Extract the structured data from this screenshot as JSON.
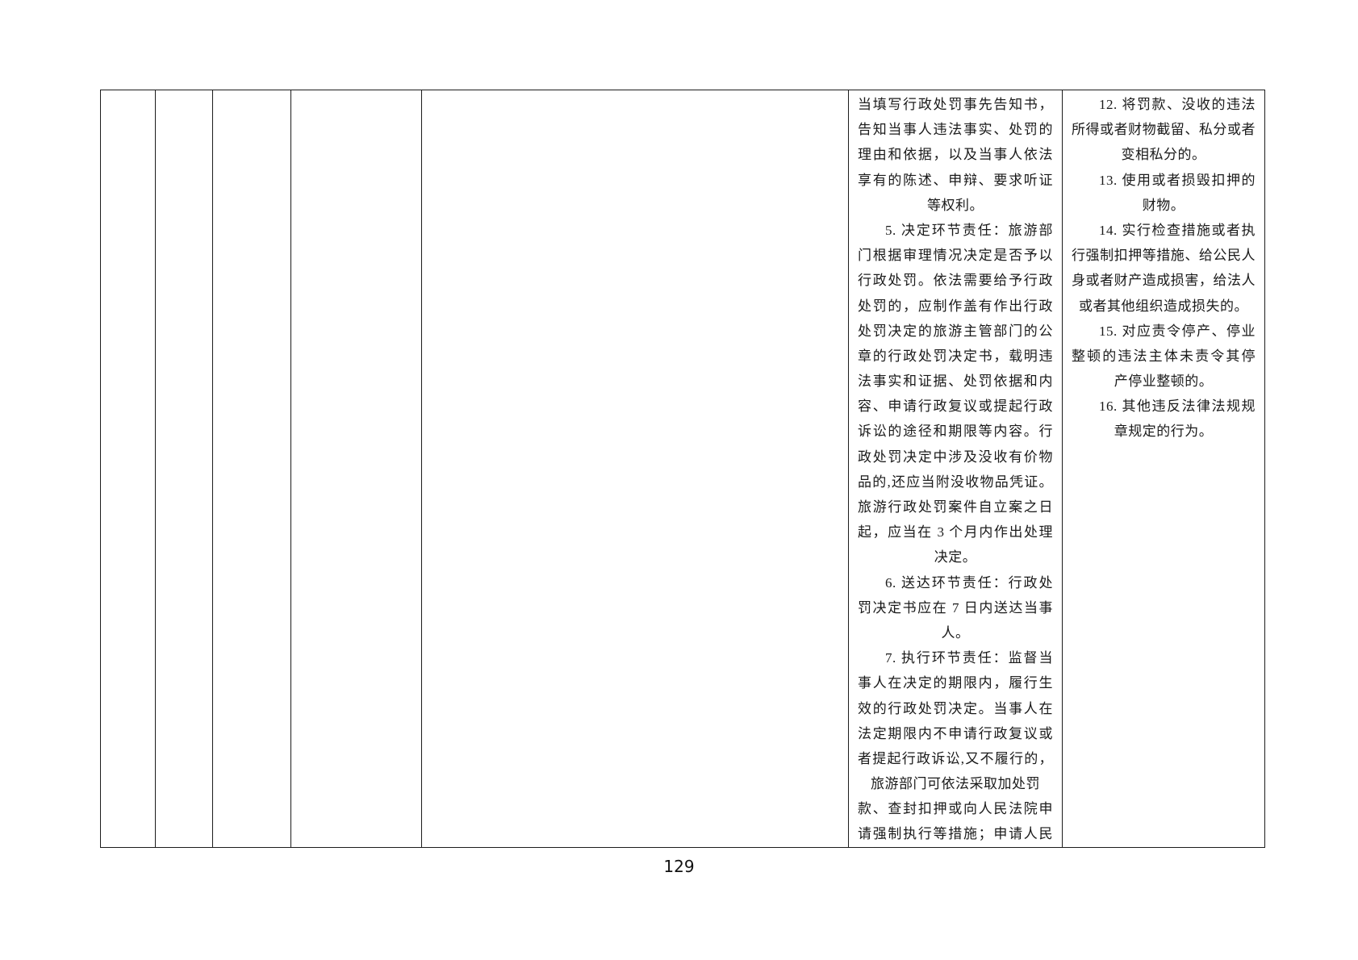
{
  "page": {
    "number": "129",
    "background_color": "#ffffff",
    "text_color": "#1a1a1a",
    "border_color": "#1c1c1c"
  },
  "table": {
    "empty_columns_count": 5,
    "process_column": {
      "lines": [
        {
          "text": "当填写行政处罚事先告知书，",
          "align": "justify"
        },
        {
          "text": "告知当事人违法事实、处罚的",
          "align": "justify"
        },
        {
          "text": "理由和依据，以及当事人依法",
          "align": "justify"
        },
        {
          "text": "享有的陈述、申辩、要求听证",
          "align": "justify"
        },
        {
          "text": "等权利。",
          "align": "center"
        },
        {
          "text": "5. 决定环节责任：旅游部",
          "align": "indent"
        },
        {
          "text": "门根据审理情况决定是否予以",
          "align": "justify"
        },
        {
          "text": "行政处罚。依法需要给予行政",
          "align": "justify"
        },
        {
          "text": "处罚的，应制作盖有作出行政",
          "align": "justify"
        },
        {
          "text": "处罚决定的旅游主管部门的公",
          "align": "justify"
        },
        {
          "text": "章的行政处罚决定书，载明违",
          "align": "justify"
        },
        {
          "text": "法事实和证据、处罚依据和内",
          "align": "justify"
        },
        {
          "text": "容、申请行政复议或提起行政",
          "align": "justify"
        },
        {
          "text": "诉讼的途径和期限等内容。行",
          "align": "justify"
        },
        {
          "text": "政处罚决定中涉及没收有价物",
          "align": "justify"
        },
        {
          "text": "品的,还应当附没收物品凭证。",
          "align": "justify"
        },
        {
          "text": "旅游行政处罚案件自立案之日",
          "align": "justify"
        },
        {
          "text": "起，应当在 3 个月内作出处理",
          "align": "justify"
        },
        {
          "text": "决定。",
          "align": "center"
        },
        {
          "text": "6. 送达环节责任：行政处",
          "align": "indent"
        },
        {
          "text": "罚决定书应在 7 日内送达当事",
          "align": "justify"
        },
        {
          "text": "人。",
          "align": "center"
        },
        {
          "text": "7. 执行环节责任：监督当",
          "align": "indent"
        },
        {
          "text": "事人在决定的期限内，履行生",
          "align": "justify"
        },
        {
          "text": "效的行政处罚决定。当事人在",
          "align": "justify"
        },
        {
          "text": "法定期限内不申请行政复议或",
          "align": "justify"
        },
        {
          "text": "者提起行政诉讼,又不履行的，",
          "align": "justify"
        },
        {
          "text": "旅游部门可依法采取加处罚",
          "align": "center"
        },
        {
          "text": "款、查封扣押或向人民法院申",
          "align": "justify"
        },
        {
          "text": "请强制执行等措施；申请人民",
          "align": "justify"
        }
      ]
    },
    "violations_column": {
      "lines": [
        {
          "text": "12. 将罚款、没收的违法",
          "align": "indent"
        },
        {
          "text": "所得或者财物截留、私分或者",
          "align": "justify"
        },
        {
          "text": "变相私分的。",
          "align": "center"
        },
        {
          "text": "13. 使用或者损毁扣押的",
          "align": "indent"
        },
        {
          "text": "财物。",
          "align": "center"
        },
        {
          "text": "14. 实行检查措施或者执",
          "align": "indent"
        },
        {
          "text": "行强制扣押等措施、给公民人",
          "align": "justify"
        },
        {
          "text": "身或者财产造成损害，给法人",
          "align": "justify"
        },
        {
          "text": "或者其他组织造成损失的。",
          "align": "center"
        },
        {
          "text": "15. 对应责令停产、停业",
          "align": "indent"
        },
        {
          "text": "整顿的违法主体未责令其停",
          "align": "justify"
        },
        {
          "text": "产停业整顿的。",
          "align": "center"
        },
        {
          "text": "16. 其他违反法律法规规",
          "align": "indent"
        },
        {
          "text": "章规定的行为。",
          "align": "center"
        }
      ]
    }
  }
}
